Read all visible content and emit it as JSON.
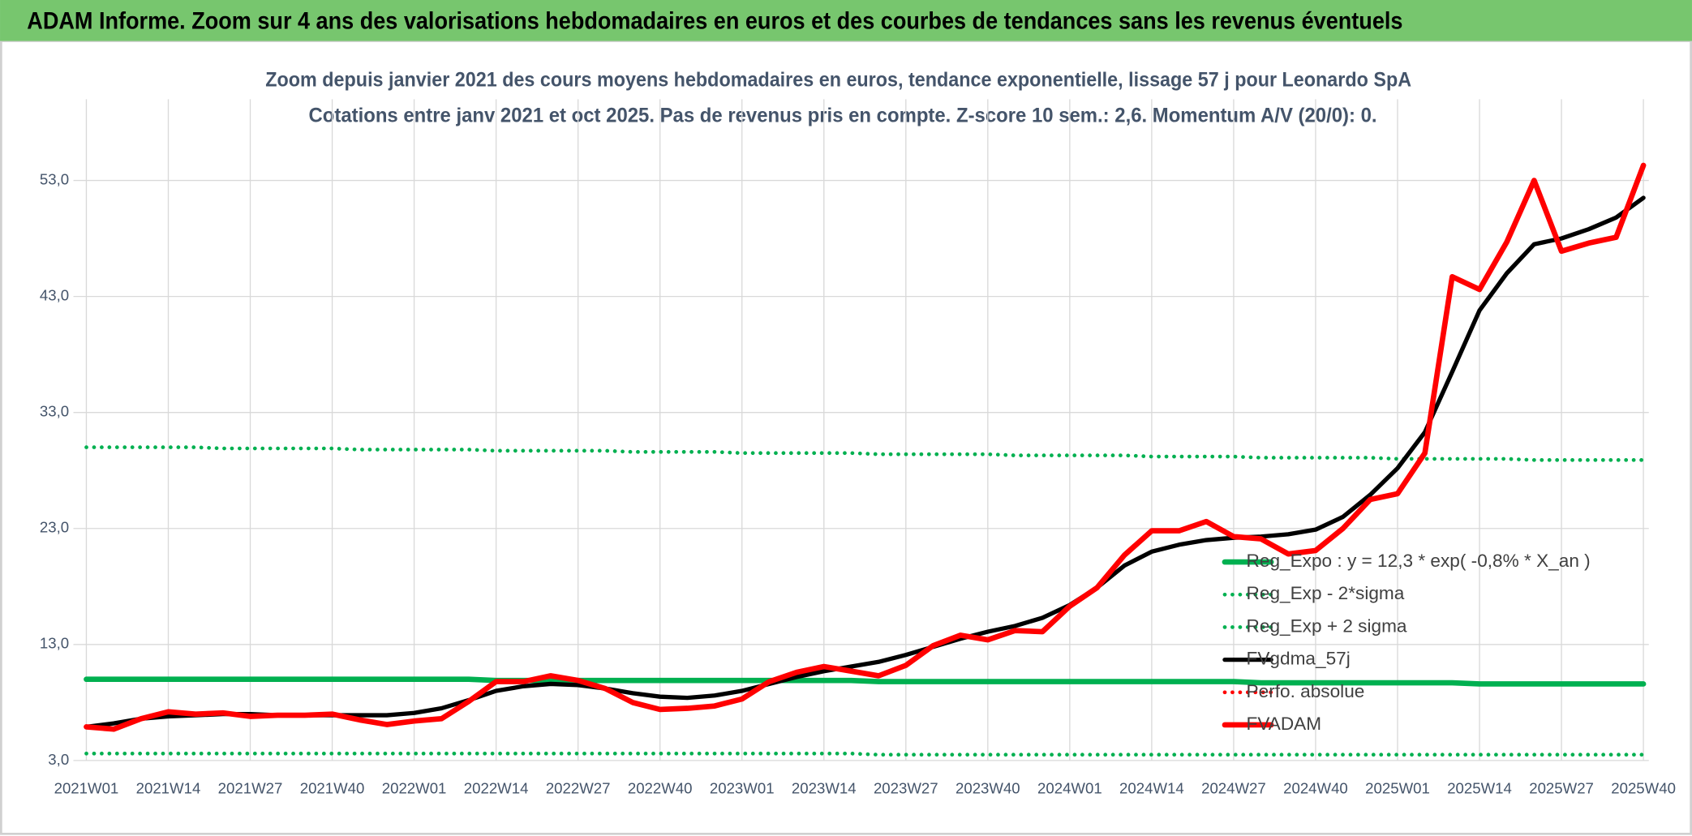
{
  "header": {
    "title": "ADAM Informe. Zoom sur 4 ans des valorisations hebdomadaires en euros et des courbes de tendances sans les revenus éventuels"
  },
  "chart_data": {
    "type": "line",
    "title": "Zoom depuis janvier 2021 des cours moyens hebdomadaires en euros, tendance exponentielle, lissage 57 j pour Leonardo SpA",
    "subtitle": "Cotations entre janv 2021 et oct 2025. Pas de revenus pris en compte. Z-score 10 sem.: 2,6. Momentum A/V (20/0): 0.",
    "categories": [
      "2021W01",
      null,
      null,
      "2021W14",
      null,
      null,
      "2021W27",
      null,
      null,
      "2021W40",
      null,
      null,
      "2022W01",
      null,
      null,
      "2022W14",
      null,
      null,
      "2022W27",
      null,
      null,
      "2022W40",
      null,
      null,
      "2023W01",
      null,
      null,
      "2023W14",
      null,
      null,
      "2023W27",
      null,
      null,
      "2023W40",
      null,
      null,
      "2024W01",
      null,
      null,
      "2024W14",
      null,
      null,
      "2024W27",
      null,
      null,
      "2024W40",
      null,
      null,
      "2025W01",
      null,
      null,
      "2025W14",
      null,
      null,
      "2025W27",
      null,
      null,
      "2025W40"
    ],
    "ylim": [
      3,
      60
    ],
    "yticks": [
      {
        "value": 3,
        "label": "3,0"
      },
      {
        "value": 13,
        "label": "13,0"
      },
      {
        "value": 23,
        "label": "23,0"
      },
      {
        "value": 33,
        "label": "33,0"
      },
      {
        "value": 43,
        "label": "43,0"
      },
      {
        "value": 53,
        "label": "53,0"
      }
    ],
    "grid": true,
    "legend": "right",
    "series": [
      {
        "name": "Reg_Expo : y = 12,3 * exp( -0,8% *  X_an )",
        "color": "#00b050",
        "style": "solid",
        "values": [
          10.0,
          10.0,
          10.0,
          10.0,
          10.0,
          10.0,
          10.0,
          10.0,
          10.0,
          10.0,
          10.0,
          10.0,
          10.0,
          10.0,
          10.0,
          9.9,
          9.9,
          9.9,
          9.9,
          9.9,
          9.9,
          9.9,
          9.9,
          9.9,
          9.9,
          9.9,
          9.9,
          9.9,
          9.9,
          9.8,
          9.8,
          9.8,
          9.8,
          9.8,
          9.8,
          9.8,
          9.8,
          9.8,
          9.8,
          9.8,
          9.8,
          9.8,
          9.8,
          9.7,
          9.7,
          9.7,
          9.7,
          9.7,
          9.7,
          9.7,
          9.7,
          9.6,
          9.6,
          9.6,
          9.6,
          9.6,
          9.6,
          9.6
        ]
      },
      {
        "name": "Reg_Exp - 2*sigma",
        "color": "#00b050",
        "style": "dotted",
        "values": [
          3.6,
          3.6,
          3.6,
          3.6,
          3.6,
          3.6,
          3.6,
          3.6,
          3.6,
          3.6,
          3.6,
          3.6,
          3.6,
          3.6,
          3.6,
          3.6,
          3.6,
          3.6,
          3.6,
          3.6,
          3.6,
          3.6,
          3.6,
          3.6,
          3.6,
          3.6,
          3.6,
          3.6,
          3.6,
          3.5,
          3.5,
          3.5,
          3.5,
          3.5,
          3.5,
          3.5,
          3.5,
          3.5,
          3.5,
          3.5,
          3.5,
          3.5,
          3.5,
          3.5,
          3.5,
          3.5,
          3.5,
          3.5,
          3.5,
          3.5,
          3.5,
          3.5,
          3.5,
          3.5,
          3.5,
          3.5,
          3.5,
          3.5
        ]
      },
      {
        "name": "Reg_Exp + 2 sigma",
        "color": "#00b050",
        "style": "dotted",
        "values": [
          30.0,
          30.0,
          30.0,
          30.0,
          30.0,
          29.9,
          29.9,
          29.9,
          29.9,
          29.9,
          29.8,
          29.8,
          29.8,
          29.8,
          29.8,
          29.7,
          29.7,
          29.7,
          29.7,
          29.7,
          29.6,
          29.6,
          29.6,
          29.6,
          29.5,
          29.5,
          29.5,
          29.5,
          29.5,
          29.4,
          29.4,
          29.4,
          29.4,
          29.4,
          29.3,
          29.3,
          29.3,
          29.3,
          29.3,
          29.2,
          29.2,
          29.2,
          29.2,
          29.1,
          29.1,
          29.1,
          29.1,
          29.1,
          29.0,
          29.0,
          29.0,
          29.0,
          29.0,
          28.9,
          28.9,
          28.9,
          28.9,
          28.9
        ]
      },
      {
        "name": "FVgdma_57j",
        "color": "#000000",
        "style": "solid",
        "values": [
          5.9,
          6.2,
          6.6,
          6.8,
          6.9,
          7.0,
          7.0,
          6.9,
          6.9,
          6.9,
          6.9,
          6.9,
          7.1,
          7.5,
          8.2,
          9.0,
          9.4,
          9.6,
          9.5,
          9.2,
          8.8,
          8.5,
          8.4,
          8.6,
          9.0,
          9.6,
          10.2,
          10.7,
          11.1,
          11.5,
          12.1,
          12.8,
          13.5,
          14.1,
          14.6,
          15.3,
          16.4,
          17.9,
          19.8,
          21.0,
          21.6,
          22.0,
          22.2,
          22.3,
          22.5,
          22.9,
          24.0,
          25.9,
          28.2,
          31.3,
          36.5,
          41.8,
          45.0,
          47.5,
          48.0,
          48.8,
          49.8,
          51.5
        ]
      },
      {
        "name": "Perfo. absolue",
        "color": "#ff0000",
        "style": "dotted",
        "values": [
          null,
          null,
          null,
          null,
          null,
          null,
          null,
          null,
          null,
          null,
          null,
          null,
          null,
          null,
          null,
          null,
          null,
          null,
          null,
          null,
          null,
          null,
          null,
          null,
          null,
          null,
          null,
          null,
          null,
          null,
          null,
          null,
          null,
          null,
          null,
          null,
          null,
          null,
          null,
          null,
          null,
          null,
          null,
          null,
          null,
          null,
          null,
          null,
          null,
          null,
          null,
          null,
          null,
          null,
          null,
          null,
          null,
          null
        ]
      },
      {
        "name": "FVADAM",
        "color": "#ff0000",
        "style": "solid",
        "values": [
          5.9,
          5.7,
          6.6,
          7.2,
          7.0,
          7.1,
          6.8,
          6.9,
          6.9,
          7.0,
          6.5,
          6.1,
          6.4,
          6.6,
          8.1,
          9.8,
          9.8,
          10.3,
          9.9,
          9.2,
          8.0,
          7.4,
          7.5,
          7.7,
          8.3,
          9.8,
          10.6,
          11.1,
          10.7,
          10.3,
          11.2,
          12.9,
          13.8,
          13.4,
          14.2,
          14.1,
          16.3,
          17.9,
          20.7,
          22.8,
          22.8,
          23.6,
          22.3,
          22.1,
          20.8,
          21.1,
          23.0,
          25.5,
          26.0,
          29.5,
          44.7,
          43.6,
          47.7,
          53.0,
          46.9,
          47.6,
          48.1,
          54.3
        ]
      }
    ]
  }
}
